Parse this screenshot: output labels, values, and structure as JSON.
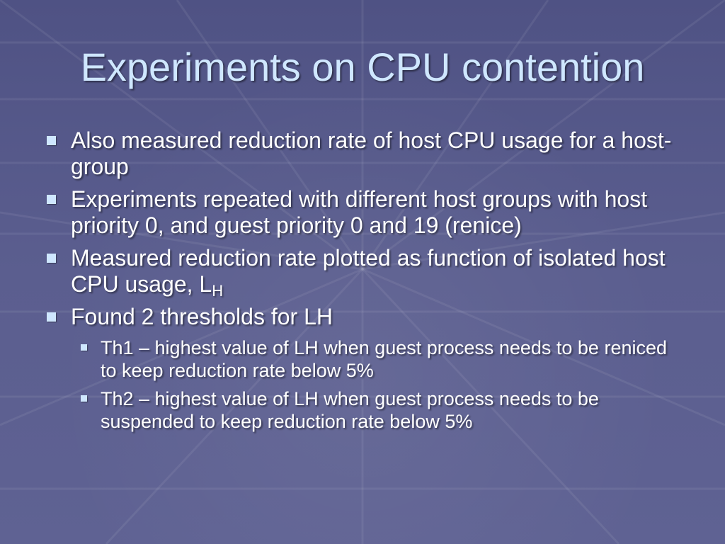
{
  "slide": {
    "title": "Experiments on CPU contention",
    "bullets": [
      {
        "text": "Also measured reduction rate of host CPU usage for a host-group"
      },
      {
        "text": "Experiments repeated with different host groups with host priority 0, and guest priority 0 and 19 (renice)"
      },
      {
        "text": "Measured reduction rate plotted as function of isolated host CPU usage, L",
        "subscript": "H"
      },
      {
        "text": "Found 2 thresholds for LH"
      }
    ],
    "subbullets": [
      {
        "text": "Th1 – highest value of LH when guest process needs to be reniced to keep reduction rate below 5%"
      },
      {
        "text": "Th2 – highest value of LH when guest process needs to be suspended to keep reduction rate below 5%"
      }
    ]
  },
  "colors": {
    "background": "#5a5d8c",
    "title": "#cfe7ff",
    "text": "#ffffff",
    "bullet": "#cfe7ff"
  }
}
